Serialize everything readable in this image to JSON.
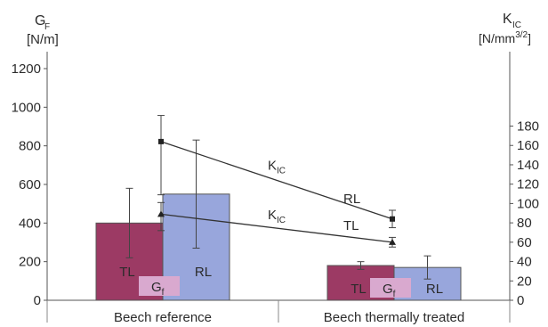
{
  "chart_data": {
    "type": "bar",
    "categories": [
      "Beech reference",
      "Beech thermally treated"
    ],
    "left_axis": {
      "title": "G",
      "title_sub": "F",
      "unit": "[N/m]",
      "ylim": [
        0,
        1400
      ],
      "ticks": [
        0,
        200,
        400,
        600,
        800,
        1000,
        1200
      ]
    },
    "right_axis": {
      "title": "K",
      "title_sub": "IC",
      "unit_main": "[N/mm",
      "unit_sup": "3/2",
      "unit_close": "]",
      "ylim": [
        0,
        190
      ],
      "ticks": [
        0,
        20,
        40,
        60,
        80,
        100,
        120,
        140,
        160,
        180
      ]
    },
    "bars": [
      {
        "category": "Beech reference",
        "orientation": "TL",
        "value": 400,
        "err_low": 220,
        "err_high": 580,
        "color": "#9c3a64"
      },
      {
        "category": "Beech reference",
        "orientation": "RL",
        "value": 550,
        "err_low": 270,
        "err_high": 830,
        "color": "#98a6dc"
      },
      {
        "category": "Beech thermally treated",
        "orientation": "TL",
        "value": 180,
        "err_low": 160,
        "err_high": 200,
        "color": "#9c3a64"
      },
      {
        "category": "Beech thermally treated",
        "orientation": "RL",
        "value": 170,
        "err_low": 110,
        "err_high": 230,
        "color": "#98a6dc"
      }
    ],
    "bar_label": {
      "main": "G",
      "sub": "f",
      "box_color": "#d9a9cf"
    },
    "kic_series": [
      {
        "name": "RL",
        "label_main": "K",
        "label_sub": "IC",
        "marker": "square",
        "values": [
          164,
          84
        ],
        "err_low": [
          109,
          75
        ],
        "err_high": [
          191,
          93
        ]
      },
      {
        "name": "TL",
        "label_main": "K",
        "label_sub": "IC",
        "marker": "triangle",
        "values": [
          89,
          60
        ],
        "err_low": [
          72,
          55
        ],
        "err_high": [
          101,
          65
        ]
      }
    ],
    "colors": {
      "tl_bar": "#9c3a64",
      "rl_bar": "#98a6dc",
      "line": "#333333"
    }
  }
}
